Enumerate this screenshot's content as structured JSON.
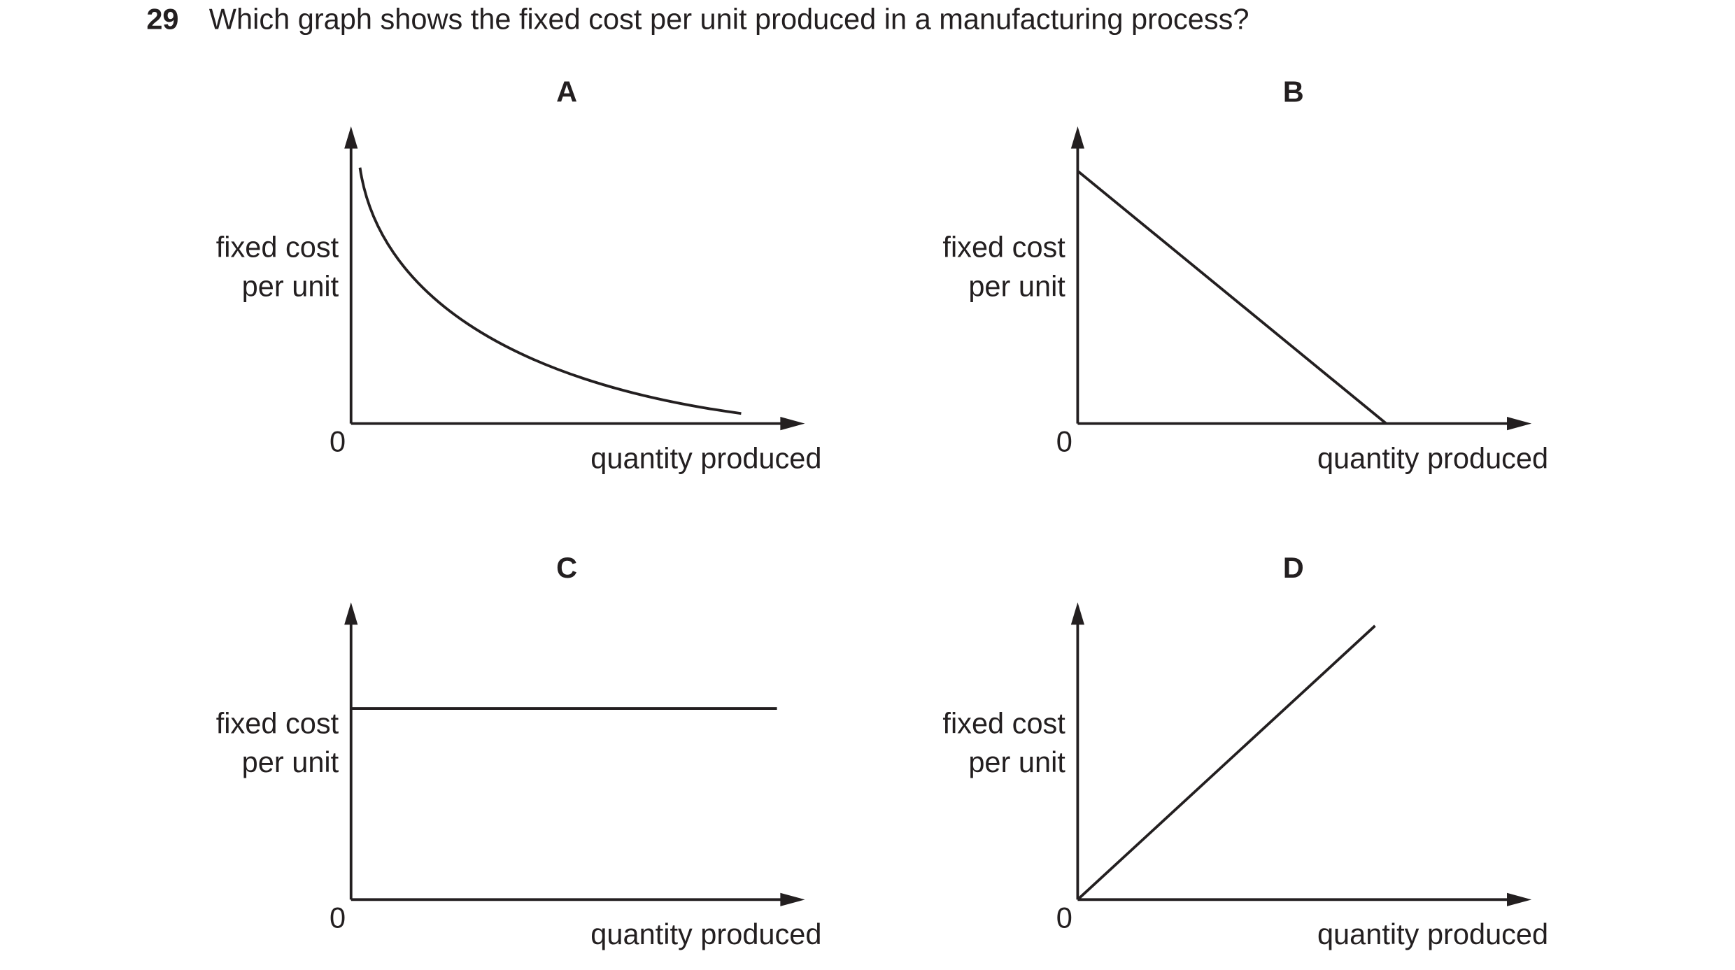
{
  "question": {
    "number": "29",
    "text": "Which graph shows the fixed cost per unit produced in a manufacturing process?"
  },
  "options": [
    {
      "label": "A",
      "y_axis_label": [
        "fixed cost",
        "per unit"
      ],
      "origin": "0",
      "x_axis_label": "quantity produced"
    },
    {
      "label": "B",
      "y_axis_label": [
        "fixed cost",
        "per unit"
      ],
      "origin": "0",
      "x_axis_label": "quantity produced"
    },
    {
      "label": "C",
      "y_axis_label": [
        "fixed cost",
        "per unit"
      ],
      "origin": "0",
      "x_axis_label": "quantity produced"
    },
    {
      "label": "D",
      "y_axis_label": [
        "fixed cost",
        "per unit"
      ],
      "origin": "0",
      "x_axis_label": "quantity produced"
    }
  ]
}
